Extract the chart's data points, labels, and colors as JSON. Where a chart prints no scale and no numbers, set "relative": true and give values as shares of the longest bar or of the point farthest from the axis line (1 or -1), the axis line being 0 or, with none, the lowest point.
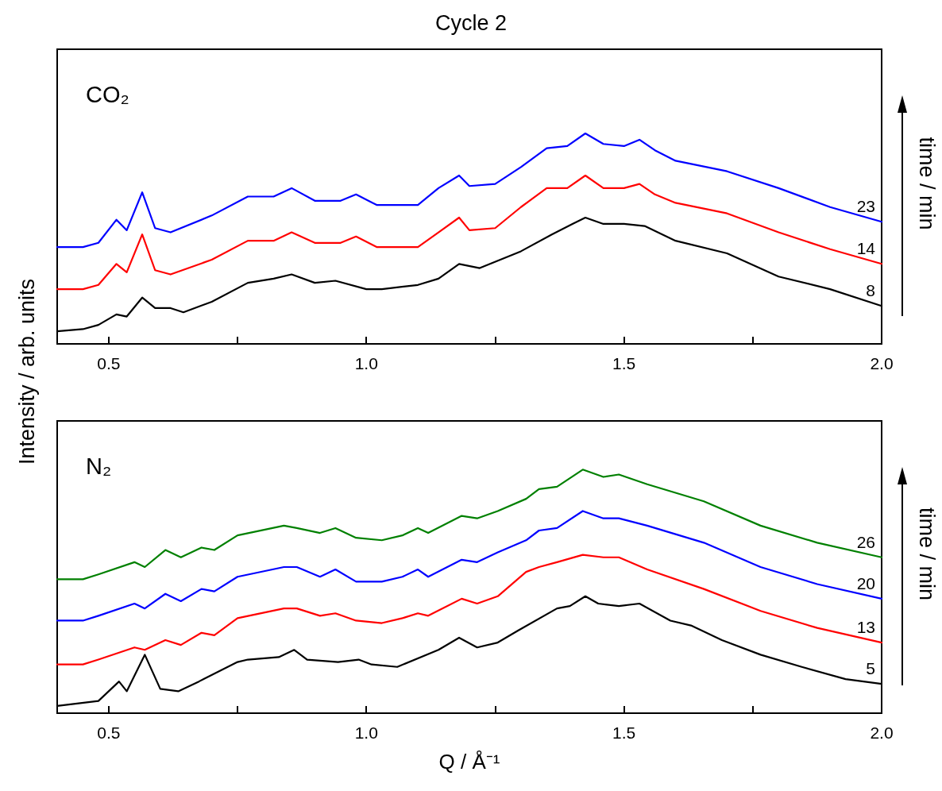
{
  "chart_data": [
    {
      "type": "line",
      "title": "Cycle 2",
      "ylabel": "Intensity / arb. units",
      "relative": true,
      "legend": false,
      "grid": false,
      "marker": "none",
      "line_style": "solid",
      "annotations": [
        "CO₂",
        "time / min"
      ],
      "xlim": [
        0.4,
        2.0
      ],
      "xticks": [
        {
          "value": 0.5,
          "label": "0.5"
        },
        {
          "value": 0.75,
          "label": null
        },
        {
          "value": 1,
          "label": "1.0"
        },
        {
          "value": 1.25,
          "label": null
        },
        {
          "value": 1.5,
          "label": "1.5"
        },
        {
          "value": 1.75,
          "label": null
        },
        {
          "value": 2,
          "label": "2.0"
        }
      ],
      "series": [
        {
          "name": "8",
          "color": "#000000",
          "x": [
            0.4,
            0.45,
            0.48,
            0.515,
            0.535,
            0.565,
            0.59,
            0.62,
            0.645,
            0.7,
            0.77,
            0.82,
            0.855,
            0.9,
            0.94,
            1.0,
            1.03,
            1.1,
            1.14,
            1.18,
            1.22,
            1.3,
            1.36,
            1.4,
            1.425,
            1.46,
            1.5,
            1.54,
            1.6,
            1.7,
            1.8,
            1.9,
            2.0
          ],
          "values": [
            0.06,
            0.07,
            0.09,
            0.14,
            0.13,
            0.22,
            0.17,
            0.17,
            0.15,
            0.2,
            0.29,
            0.31,
            0.33,
            0.29,
            0.3,
            0.26,
            0.26,
            0.28,
            0.31,
            0.38,
            0.36,
            0.44,
            0.52,
            0.57,
            0.6,
            0.57,
            0.57,
            0.56,
            0.49,
            0.43,
            0.32,
            0.26,
            0.18
          ]
        },
        {
          "name": "14",
          "color": "#ff0000",
          "x": [
            0.4,
            0.45,
            0.48,
            0.515,
            0.535,
            0.565,
            0.59,
            0.62,
            0.7,
            0.77,
            0.82,
            0.855,
            0.9,
            0.95,
            0.98,
            1.02,
            1.1,
            1.14,
            1.18,
            1.2,
            1.25,
            1.3,
            1.35,
            1.39,
            1.425,
            1.46,
            1.5,
            1.53,
            1.56,
            1.6,
            1.7,
            1.8,
            1.9,
            2.0
          ],
          "values": [
            0.26,
            0.26,
            0.28,
            0.38,
            0.34,
            0.52,
            0.35,
            0.33,
            0.4,
            0.49,
            0.49,
            0.53,
            0.48,
            0.48,
            0.51,
            0.46,
            0.46,
            0.53,
            0.6,
            0.54,
            0.55,
            0.65,
            0.74,
            0.74,
            0.8,
            0.74,
            0.74,
            0.76,
            0.71,
            0.67,
            0.62,
            0.53,
            0.45,
            0.38
          ]
        },
        {
          "name": "23",
          "color": "#0000ff",
          "x": [
            0.4,
            0.45,
            0.48,
            0.515,
            0.535,
            0.565,
            0.59,
            0.62,
            0.7,
            0.77,
            0.82,
            0.855,
            0.9,
            0.95,
            0.98,
            1.02,
            1.1,
            1.14,
            1.18,
            1.2,
            1.25,
            1.3,
            1.35,
            1.39,
            1.425,
            1.46,
            1.5,
            1.53,
            1.56,
            1.6,
            1.7,
            1.8,
            1.9,
            2.0
          ],
          "values": [
            0.46,
            0.46,
            0.48,
            0.59,
            0.54,
            0.72,
            0.55,
            0.53,
            0.61,
            0.7,
            0.7,
            0.74,
            0.68,
            0.68,
            0.71,
            0.66,
            0.66,
            0.74,
            0.8,
            0.75,
            0.76,
            0.84,
            0.93,
            0.94,
            1.0,
            0.95,
            0.94,
            0.97,
            0.92,
            0.87,
            0.82,
            0.74,
            0.65,
            0.58
          ]
        }
      ]
    },
    {
      "type": "line",
      "xlabel": "Q / Å⁻¹",
      "relative": true,
      "legend": false,
      "grid": false,
      "marker": "none",
      "line_style": "solid",
      "annotations": [
        "N₂",
        "time / min"
      ],
      "xlim": [
        0.4,
        2.0
      ],
      "xticks": [
        {
          "value": 0.5,
          "label": "0.5"
        },
        {
          "value": 0.75,
          "label": null
        },
        {
          "value": 1,
          "label": "1.0"
        },
        {
          "value": 1.25,
          "label": null
        },
        {
          "value": 1.5,
          "label": "1.5"
        },
        {
          "value": 1.75,
          "label": null
        },
        {
          "value": 2,
          "label": "2.0"
        }
      ],
      "series": [
        {
          "name": "5",
          "color": "#000000",
          "x": [
            0.4,
            0.48,
            0.52,
            0.535,
            0.57,
            0.6,
            0.635,
            0.675,
            0.75,
            0.77,
            0.83,
            0.86,
            0.885,
            0.945,
            0.985,
            1.01,
            1.06,
            1.14,
            1.18,
            1.215,
            1.255,
            1.295,
            1.37,
            1.395,
            1.425,
            1.45,
            1.49,
            1.53,
            1.59,
            1.63,
            1.69,
            1.765,
            1.845,
            1.93,
            2.0
          ],
          "values": [
            0.03,
            0.05,
            0.13,
            0.09,
            0.24,
            0.1,
            0.09,
            0.13,
            0.21,
            0.22,
            0.23,
            0.26,
            0.22,
            0.21,
            0.22,
            0.2,
            0.19,
            0.26,
            0.31,
            0.27,
            0.29,
            0.34,
            0.43,
            0.44,
            0.48,
            0.45,
            0.44,
            0.45,
            0.38,
            0.36,
            0.3,
            0.24,
            0.19,
            0.14,
            0.12
          ]
        },
        {
          "name": "13",
          "color": "#ff0000",
          "x": [
            0.4,
            0.45,
            0.48,
            0.55,
            0.57,
            0.61,
            0.64,
            0.68,
            0.705,
            0.75,
            0.84,
            0.865,
            0.91,
            0.94,
            0.98,
            1.03,
            1.07,
            1.1,
            1.12,
            1.185,
            1.215,
            1.255,
            1.31,
            1.335,
            1.37,
            1.42,
            1.46,
            1.49,
            1.545,
            1.655,
            1.765,
            1.875,
            2.0
          ],
          "values": [
            0.2,
            0.2,
            0.22,
            0.27,
            0.26,
            0.3,
            0.28,
            0.33,
            0.32,
            0.39,
            0.43,
            0.43,
            0.4,
            0.41,
            0.38,
            0.37,
            0.39,
            0.41,
            0.4,
            0.47,
            0.45,
            0.48,
            0.58,
            0.6,
            0.62,
            0.65,
            0.64,
            0.64,
            0.59,
            0.51,
            0.42,
            0.35,
            0.29
          ]
        },
        {
          "name": "20",
          "color": "#0000ff",
          "x": [
            0.4,
            0.45,
            0.48,
            0.55,
            0.57,
            0.61,
            0.64,
            0.68,
            0.705,
            0.75,
            0.84,
            0.865,
            0.91,
            0.94,
            0.98,
            1.03,
            1.07,
            1.1,
            1.12,
            1.185,
            1.215,
            1.255,
            1.31,
            1.335,
            1.37,
            1.42,
            1.46,
            1.49,
            1.545,
            1.655,
            1.765,
            1.875,
            2.0
          ],
          "values": [
            0.38,
            0.38,
            0.4,
            0.45,
            0.43,
            0.49,
            0.46,
            0.51,
            0.5,
            0.56,
            0.6,
            0.6,
            0.56,
            0.59,
            0.54,
            0.54,
            0.56,
            0.59,
            0.56,
            0.63,
            0.62,
            0.66,
            0.71,
            0.75,
            0.76,
            0.83,
            0.8,
            0.8,
            0.77,
            0.7,
            0.6,
            0.53,
            0.47
          ]
        },
        {
          "name": "26",
          "color": "#008000",
          "x": [
            0.4,
            0.45,
            0.48,
            0.55,
            0.57,
            0.61,
            0.64,
            0.68,
            0.705,
            0.75,
            0.84,
            0.865,
            0.91,
            0.94,
            0.98,
            1.03,
            1.07,
            1.1,
            1.12,
            1.185,
            1.215,
            1.255,
            1.31,
            1.335,
            1.37,
            1.42,
            1.46,
            1.49,
            1.545,
            1.655,
            1.765,
            1.875,
            2.0
          ],
          "values": [
            0.55,
            0.55,
            0.57,
            0.62,
            0.6,
            0.67,
            0.64,
            0.68,
            0.67,
            0.73,
            0.77,
            0.76,
            0.74,
            0.76,
            0.72,
            0.71,
            0.73,
            0.76,
            0.74,
            0.81,
            0.8,
            0.83,
            0.88,
            0.92,
            0.93,
            1.0,
            0.97,
            0.98,
            0.94,
            0.87,
            0.77,
            0.7,
            0.64
          ]
        }
      ]
    }
  ]
}
